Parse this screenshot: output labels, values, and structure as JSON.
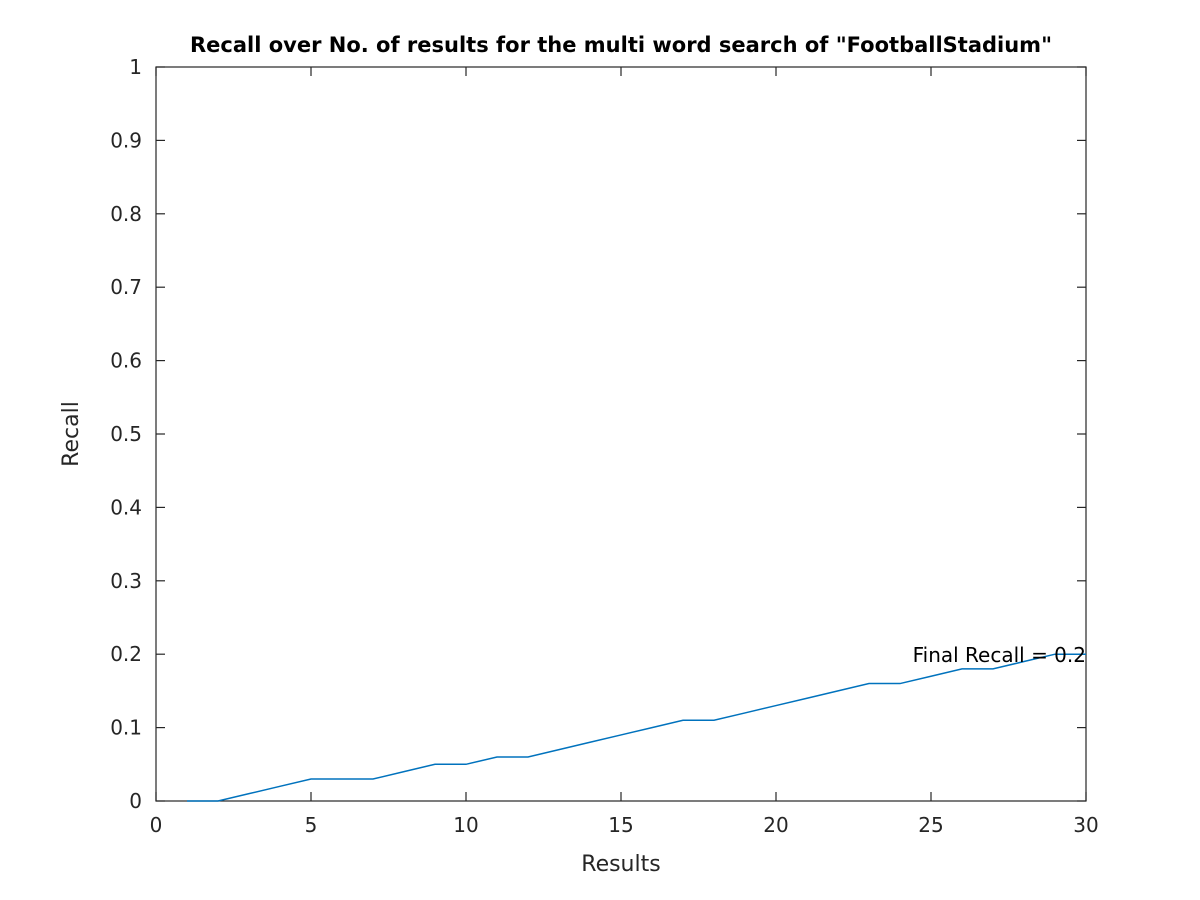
{
  "chart_data": {
    "type": "line",
    "title": "Recall over No. of results for the multi word search of \"FootballStadium\"",
    "xlabel": "Results",
    "ylabel": "Recall",
    "xlim": [
      0,
      30
    ],
    "ylim": [
      0,
      1
    ],
    "xticks": [
      0,
      5,
      10,
      15,
      20,
      25,
      30
    ],
    "yticks": [
      0,
      0.1,
      0.2,
      0.3,
      0.4,
      0.5,
      0.6,
      0.7,
      0.8,
      0.9,
      1
    ],
    "grid": false,
    "series": [
      {
        "color": "#0072bd",
        "x": [
          1,
          2,
          3,
          4,
          5,
          6,
          7,
          8,
          9,
          10,
          11,
          12,
          13,
          14,
          15,
          16,
          17,
          18,
          19,
          20,
          21,
          22,
          23,
          24,
          25,
          26,
          27,
          28,
          29,
          30
        ],
        "y": [
          0,
          0,
          0.01,
          0.02,
          0.03,
          0.03,
          0.03,
          0.04,
          0.05,
          0.05,
          0.06,
          0.06,
          0.07,
          0.08,
          0.09,
          0.1,
          0.11,
          0.11,
          0.12,
          0.13,
          0.14,
          0.15,
          0.16,
          0.16,
          0.17,
          0.18,
          0.18,
          0.19,
          0.2,
          0.2
        ]
      }
    ],
    "annotations": [
      {
        "text": "Final Recall = 0.2",
        "x": 30,
        "y": 0.2
      }
    ]
  }
}
